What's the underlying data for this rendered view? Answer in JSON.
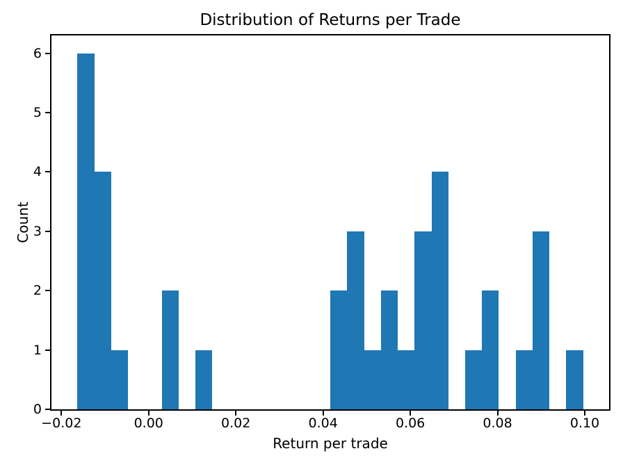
{
  "chart_data": {
    "type": "bar",
    "subtype": "histogram",
    "title": "Distribution of Returns per Trade",
    "xlabel": "Return per trade",
    "ylabel": "Count",
    "bar_color": "#1f77b4",
    "axis_color": "#000000",
    "background_color": "#ffffff",
    "grid": false,
    "legend_position": "none",
    "bin_start": -0.01634,
    "bin_width": 0.003866,
    "bin_count": 30,
    "counts": [
      6,
      4,
      1,
      0,
      0,
      2,
      0,
      1,
      0,
      0,
      0,
      0,
      0,
      0,
      0,
      2,
      3,
      1,
      2,
      1,
      3,
      4,
      0,
      1,
      2,
      0,
      1,
      3,
      0,
      1
    ],
    "xlim": [
      -0.02228,
      0.10558
    ],
    "ylim": [
      0,
      6.3
    ],
    "xticks": [
      {
        "value": -0.02,
        "label": "−0.02"
      },
      {
        "value": 0.0,
        "label": "0.00"
      },
      {
        "value": 0.02,
        "label": "0.02"
      },
      {
        "value": 0.04,
        "label": "0.04"
      },
      {
        "value": 0.06,
        "label": "0.06"
      },
      {
        "value": 0.08,
        "label": "0.08"
      },
      {
        "value": 0.1,
        "label": "0.10"
      }
    ],
    "yticks": [
      {
        "value": 0,
        "label": "0"
      },
      {
        "value": 1,
        "label": "1"
      },
      {
        "value": 2,
        "label": "2"
      },
      {
        "value": 3,
        "label": "3"
      },
      {
        "value": 4,
        "label": "4"
      },
      {
        "value": 5,
        "label": "5"
      },
      {
        "value": 6,
        "label": "6"
      }
    ]
  }
}
